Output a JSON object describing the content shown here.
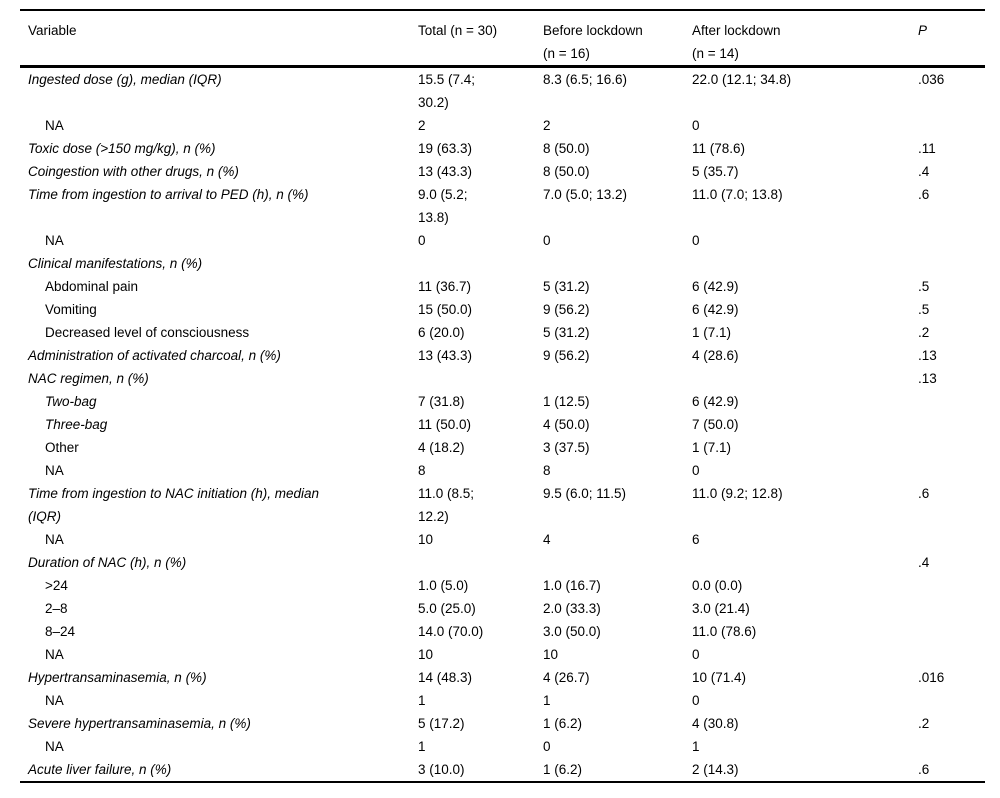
{
  "colors": {
    "text": "#000000",
    "rule": "#000000",
    "background": "#ffffff"
  },
  "table": {
    "columns": [
      {
        "key": "label",
        "label": "Variable"
      },
      {
        "key": "total",
        "label": "Total (n = 30)"
      },
      {
        "key": "before",
        "label": "Before lockdown\n(n = 16)"
      },
      {
        "key": "after",
        "label": "After lockdown\n(n = 14)"
      },
      {
        "key": "p",
        "label": "P"
      }
    ],
    "rows": [
      {
        "label": "Ingested dose (g), median (IQR)",
        "italic": true,
        "indent": 0,
        "total": "15.5 (7.4;\n30.2)",
        "before": "8.3 (6.5; 16.6)",
        "after": "22.0 (12.1; 34.8)",
        "p": ".036"
      },
      {
        "label": "NA",
        "italic": false,
        "indent": 1,
        "total": "2",
        "before": "2",
        "after": "0",
        "p": ""
      },
      {
        "label": "Toxic dose (>150 mg/kg), n (%)",
        "italic": true,
        "indent": 0,
        "total": "19 (63.3)",
        "before": "8 (50.0)",
        "after": "11 (78.6)",
        "p": ".11"
      },
      {
        "label": "Coingestion with other drugs, n (%)",
        "italic": true,
        "indent": 0,
        "total": "13 (43.3)",
        "before": "8 (50.0)",
        "after": "5 (35.7)",
        "p": ".4"
      },
      {
        "label": "Time from ingestion to arrival to PED (h), n (%)",
        "italic": true,
        "indent": 0,
        "total": "9.0 (5.2;\n13.8)",
        "before": "7.0 (5.0; 13.2)",
        "after": "11.0 (7.0; 13.8)",
        "p": ".6"
      },
      {
        "label": "NA",
        "italic": false,
        "indent": 1,
        "total": "0",
        "before": "0",
        "after": "0",
        "p": ""
      },
      {
        "label": "Clinical manifestations, n (%)",
        "italic": true,
        "indent": 0,
        "total": "",
        "before": "",
        "after": "",
        "p": ""
      },
      {
        "label": "Abdominal pain",
        "italic": false,
        "indent": 1,
        "total": "11 (36.7)",
        "before": "5 (31.2)",
        "after": "6 (42.9)",
        "p": ".5"
      },
      {
        "label": "Vomiting",
        "italic": false,
        "indent": 1,
        "total": "15 (50.0)",
        "before": "9 (56.2)",
        "after": "6 (42.9)",
        "p": ".5"
      },
      {
        "label": "Decreased level of consciousness",
        "italic": false,
        "indent": 1,
        "total": "6 (20.0)",
        "before": "5 (31.2)",
        "after": "1 (7.1)",
        "p": ".2"
      },
      {
        "label": "Administration of activated charcoal, n (%)",
        "italic": true,
        "indent": 0,
        "total": "13 (43.3)",
        "before": "9 (56.2)",
        "after": "4 (28.6)",
        "p": ".13"
      },
      {
        "label": "NAC regimen, n (%)",
        "italic": true,
        "indent": 0,
        "total": "",
        "before": "",
        "after": "",
        "p": ".13"
      },
      {
        "label": "Two-bag",
        "italic": true,
        "indent": 1,
        "total": "7 (31.8)",
        "before": "1 (12.5)",
        "after": "6 (42.9)",
        "p": ""
      },
      {
        "label": "Three-bag",
        "italic": true,
        "indent": 1,
        "total": "11 (50.0)",
        "before": "4 (50.0)",
        "after": "7 (50.0)",
        "p": ""
      },
      {
        "label": "Other",
        "italic": false,
        "indent": 1,
        "total": "4 (18.2)",
        "before": "3 (37.5)",
        "after": "1 (7.1)",
        "p": ""
      },
      {
        "label": "NA",
        "italic": false,
        "indent": 1,
        "total": "8",
        "before": "8",
        "after": "0",
        "p": ""
      },
      {
        "label": "Time from ingestion to NAC initiation (h), median\n(IQR)",
        "italic": true,
        "indent": 0,
        "total": "11.0 (8.5;\n12.2)",
        "before": "9.5 (6.0; 11.5)",
        "after": "11.0 (9.2; 12.8)",
        "p": ".6"
      },
      {
        "label": "NA",
        "italic": false,
        "indent": 1,
        "total": "10",
        "before": "4",
        "after": "6",
        "p": ""
      },
      {
        "label": "Duration of NAC (h), n (%)",
        "italic": true,
        "indent": 0,
        "total": "",
        "before": "",
        "after": "",
        "p": ".4"
      },
      {
        "label": ">24",
        "italic": false,
        "indent": 1,
        "total": "1.0 (5.0)",
        "before": "1.0 (16.7)",
        "after": "0.0 (0.0)",
        "p": ""
      },
      {
        "label": "2–8",
        "italic": false,
        "indent": 1,
        "total": "5.0 (25.0)",
        "before": "2.0 (33.3)",
        "after": "3.0 (21.4)",
        "p": ""
      },
      {
        "label": "8–24",
        "italic": false,
        "indent": 1,
        "total": "14.0 (70.0)",
        "before": "3.0 (50.0)",
        "after": "11.0 (78.6)",
        "p": ""
      },
      {
        "label": "NA",
        "italic": false,
        "indent": 1,
        "total": "10",
        "before": "10",
        "after": "0",
        "p": ""
      },
      {
        "label": "Hypertransaminasemia, n (%)",
        "italic": true,
        "indent": 0,
        "total": "14 (48.3)",
        "before": "4 (26.7)",
        "after": "10 (71.4)",
        "p": ".016"
      },
      {
        "label": "NA",
        "italic": false,
        "indent": 1,
        "total": "1",
        "before": "1",
        "after": "0",
        "p": ""
      },
      {
        "label": "Severe hypertransaminasemia, n (%)",
        "italic": true,
        "indent": 0,
        "total": "5 (17.2)",
        "before": "1 (6.2)",
        "after": "4 (30.8)",
        "p": ".2"
      },
      {
        "label": "NA",
        "italic": false,
        "indent": 1,
        "total": "1",
        "before": "0",
        "after": "1",
        "p": ""
      },
      {
        "label": "Acute liver failure, n (%)",
        "italic": true,
        "indent": 0,
        "total": "3 (10.0)",
        "before": "1 (6.2)",
        "after": "2 (14.3)",
        "p": ".6"
      }
    ]
  }
}
